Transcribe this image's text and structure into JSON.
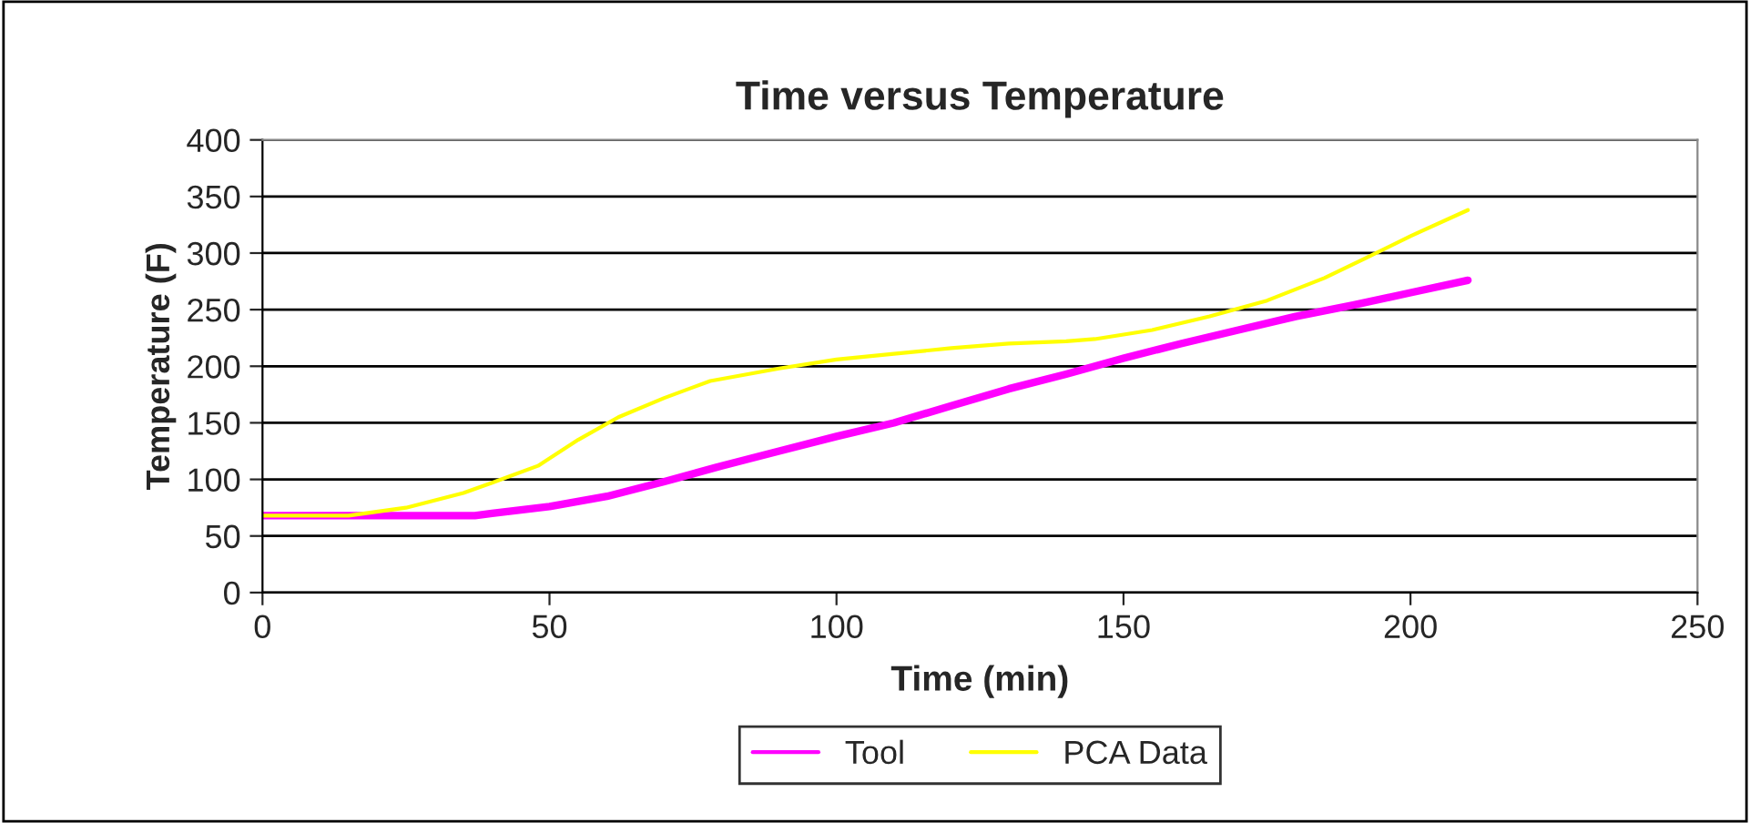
{
  "chart_data": {
    "type": "line",
    "title": "Time versus Temperature",
    "xlabel": "Time (min)",
    "ylabel": "Temperature (F)",
    "xlim": [
      0,
      250
    ],
    "xticks": [
      0,
      50,
      100,
      150,
      200,
      250
    ],
    "ylim": [
      0,
      400
    ],
    "yticks": [
      0,
      50,
      100,
      150,
      200,
      250,
      300,
      350,
      400
    ],
    "grid": "y",
    "legend": "bottom",
    "marker": "none",
    "line_style": "solid",
    "series": [
      {
        "name": "Tool",
        "color": "#ff00ff",
        "x": [
          0,
          37,
          40,
          50,
          60,
          70,
          80,
          90,
          100,
          110,
          120,
          130,
          140,
          150,
          160,
          170,
          180,
          190,
          200,
          210
        ],
        "values": [
          68,
          68,
          70,
          76,
          85,
          98,
          112,
          125,
          138,
          150,
          165,
          180,
          193,
          207,
          220,
          232,
          244,
          254,
          265,
          276
        ]
      },
      {
        "name": "PCA Data",
        "color": "#ffff00",
        "x": [
          0,
          15,
          25,
          35,
          40,
          48,
          55,
          62,
          70,
          78,
          90,
          100,
          110,
          120,
          130,
          140,
          145,
          155,
          165,
          175,
          185,
          192,
          200,
          210
        ],
        "values": [
          68,
          68,
          75,
          88,
          97,
          112,
          135,
          155,
          172,
          187,
          198,
          206,
          211,
          216,
          220,
          222,
          224,
          232,
          244,
          258,
          278,
          295,
          315,
          338
        ]
      }
    ]
  }
}
